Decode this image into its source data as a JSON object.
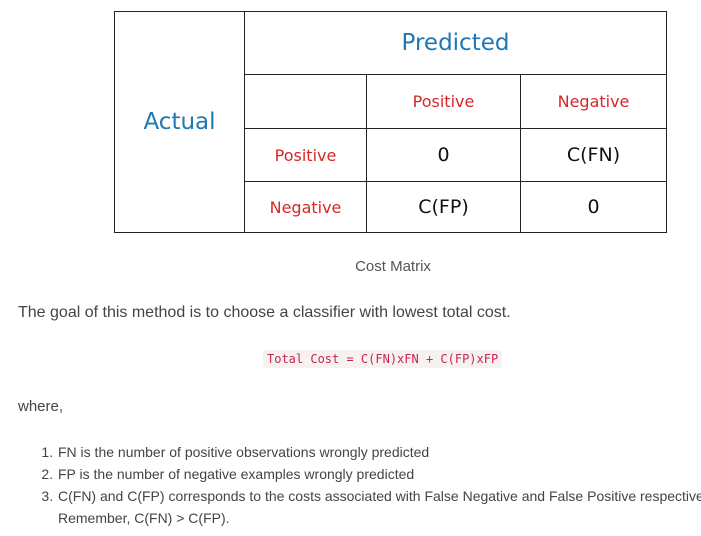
{
  "cost_matrix": {
    "row_axis_label": "Actual",
    "column_axis_label": "Predicted",
    "column_headers": [
      "Positive",
      "Negative"
    ],
    "rows": [
      {
        "label": "Positive",
        "cells": [
          "0",
          "C(FN)"
        ]
      },
      {
        "label": "Negative",
        "cells": [
          "C(FP)",
          "0"
        ]
      }
    ],
    "caption": "Cost Matrix"
  },
  "text": {
    "intro": "The goal of this method is to choose a classifier with lowest total cost.",
    "formula": "Total Cost = C(FN)xFN + C(FP)xFP",
    "where": "where,",
    "notes": [
      "FN is the number of positive observations wrongly predicted",
      "FP is the number of negative examples wrongly predicted",
      "C(FN) and C(FP) corresponds to the costs associated with False Negative and False Positive respectively. Remember, C(FN) > C(FP)."
    ]
  },
  "colors": {
    "axis_label": "#1f77b4",
    "class_label": "#d62728",
    "formula_text": "#c7254e",
    "formula_background": "#f7f2f2"
  }
}
